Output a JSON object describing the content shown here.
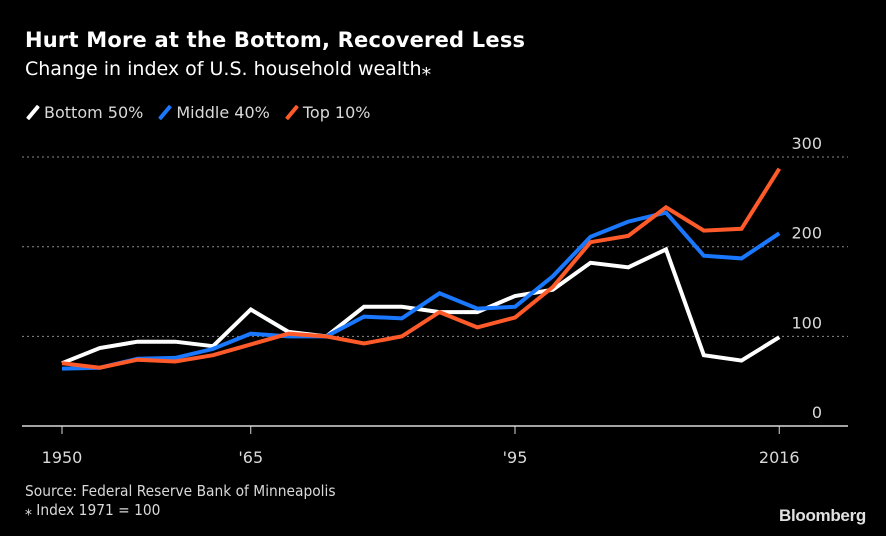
{
  "chart_data": {
    "type": "line",
    "title": "Hurt More at the Bottom, Recovered Less",
    "subtitle": "Change in index of U.S. household wealth⁎",
    "xlabel": "",
    "ylabel": "",
    "x": [
      1950,
      1953,
      1956,
      1959,
      1962,
      1965,
      1968,
      1971,
      1977,
      1983,
      1989,
      1992,
      1995,
      1998,
      2001,
      2004,
      2007,
      2010,
      2013,
      2016
    ],
    "x_ticks": [
      {
        "value": 1950,
        "label": "1950"
      },
      {
        "value": 1965,
        "label": "'65"
      },
      {
        "value": 1995,
        "label": "'95"
      },
      {
        "value": 2016,
        "label": "2016"
      }
    ],
    "y_ticks": [
      0,
      100,
      200,
      300
    ],
    "ylim": [
      0,
      300
    ],
    "grid": "horizontal-dotted",
    "y_axis_side": "right",
    "legend_position": "top-left",
    "series": [
      {
        "name": "Bottom 50%",
        "color": "#ffffff",
        "values": [
          70,
          87,
          94,
          94,
          89,
          130,
          105,
          100,
          133,
          133,
          127,
          127,
          145,
          152,
          182,
          177,
          197,
          79,
          73,
          99
        ]
      },
      {
        "name": "Middle 40%",
        "color": "#1a78ff",
        "values": [
          64,
          65,
          75,
          76,
          86,
          103,
          100,
          100,
          122,
          120,
          148,
          131,
          133,
          167,
          211,
          228,
          238,
          190,
          187,
          215
        ]
      },
      {
        "name": "Top 10%",
        "color": "#ff5a2a",
        "values": [
          70,
          65,
          74,
          72,
          79,
          91,
          103,
          100,
          92,
          100,
          127,
          110,
          121,
          155,
          205,
          212,
          244,
          218,
          220,
          287
        ]
      }
    ]
  },
  "footer": {
    "source": "Source: Federal Reserve Bank of Minneapolis",
    "note": "⁎ Index 1971 = 100",
    "brand": "Bloomberg"
  }
}
